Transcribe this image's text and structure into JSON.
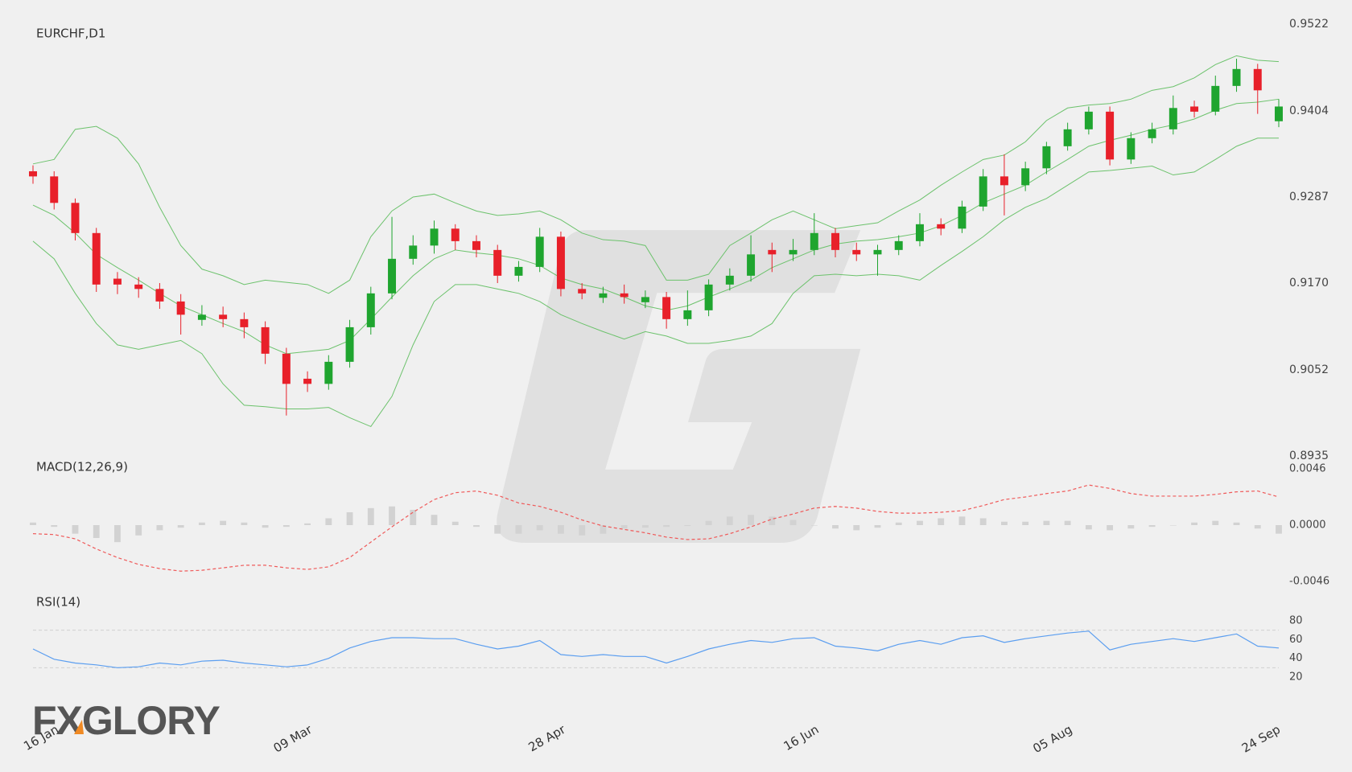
{
  "chart_data": [
    {
      "type": "candlestick",
      "title": "EURCHF,D1",
      "categories": [
        "16 Jan",
        null,
        null,
        null,
        null,
        null,
        null,
        null,
        null,
        null,
        null,
        null,
        "09 Mar",
        null,
        null,
        null,
        null,
        null,
        null,
        null,
        null,
        null,
        null,
        null,
        "28 Apr",
        null,
        null,
        null,
        null,
        null,
        null,
        null,
        null,
        null,
        null,
        null,
        "16 Jun",
        null,
        null,
        null,
        null,
        null,
        null,
        null,
        null,
        null,
        null,
        null,
        "05 Aug",
        null,
        null,
        null,
        null,
        null,
        null,
        null,
        null,
        null,
        null,
        "24 Sep"
      ],
      "open": [
        0.9322,
        0.9315,
        0.9279,
        0.9238,
        0.9176,
        0.9168,
        0.9162,
        0.9145,
        0.912,
        0.9127,
        0.9121,
        0.911,
        0.9074,
        0.904,
        0.9033,
        0.9063,
        0.911,
        0.9156,
        0.9203,
        0.9221,
        0.9244,
        0.9227,
        0.9215,
        0.918,
        0.9192,
        0.9233,
        0.9162,
        0.915,
        0.9156,
        0.9144,
        0.9151,
        0.9121,
        0.9133,
        0.9168,
        0.918,
        0.9215,
        0.9209,
        0.9215,
        0.9238,
        0.9215,
        0.9209,
        0.9215,
        0.9227,
        0.925,
        0.9244,
        0.9274,
        0.9315,
        0.9303,
        0.9326,
        0.9356,
        0.9379,
        0.9403,
        0.9338,
        0.9367,
        0.9379,
        0.941,
        0.9403,
        0.9438,
        0.9461,
        0.939
      ],
      "high": [
        0.933,
        0.9322,
        0.9285,
        0.9245,
        0.9185,
        0.9178,
        0.917,
        0.9155,
        0.914,
        0.9138,
        0.913,
        0.9118,
        0.9082,
        0.905,
        0.9072,
        0.912,
        0.9165,
        0.926,
        0.9235,
        0.9255,
        0.925,
        0.9235,
        0.9222,
        0.92,
        0.9245,
        0.924,
        0.917,
        0.9165,
        0.9168,
        0.916,
        0.9158,
        0.916,
        0.9175,
        0.919,
        0.9235,
        0.9225,
        0.923,
        0.9265,
        0.9245,
        0.9225,
        0.9222,
        0.9235,
        0.9265,
        0.9258,
        0.9282,
        0.9325,
        0.9345,
        0.9335,
        0.9362,
        0.9388,
        0.941,
        0.941,
        0.9375,
        0.9388,
        0.9425,
        0.9418,
        0.9452,
        0.9475,
        0.9468,
        0.942
      ],
      "low": [
        0.9305,
        0.927,
        0.9228,
        0.9158,
        0.9155,
        0.915,
        0.9135,
        0.91,
        0.9112,
        0.911,
        0.9095,
        0.906,
        0.899,
        0.9022,
        0.9025,
        0.9055,
        0.91,
        0.9148,
        0.9195,
        0.921,
        0.9215,
        0.9205,
        0.917,
        0.9172,
        0.9185,
        0.9152,
        0.9148,
        0.9143,
        0.9142,
        0.9136,
        0.9108,
        0.9112,
        0.9125,
        0.916,
        0.9172,
        0.9185,
        0.92,
        0.9208,
        0.9205,
        0.92,
        0.918,
        0.9208,
        0.922,
        0.9235,
        0.9238,
        0.9268,
        0.9262,
        0.9295,
        0.9318,
        0.935,
        0.9372,
        0.933,
        0.9332,
        0.936,
        0.9372,
        0.9395,
        0.9398,
        0.943,
        0.94,
        0.9382
      ],
      "close": [
        0.9315,
        0.9279,
        0.9238,
        0.9168,
        0.9168,
        0.9162,
        0.9145,
        0.9127,
        0.9127,
        0.9121,
        0.911,
        0.9074,
        0.9033,
        0.9033,
        0.9063,
        0.911,
        0.9156,
        0.9203,
        0.9221,
        0.9244,
        0.9227,
        0.9215,
        0.918,
        0.9192,
        0.9233,
        0.9162,
        0.9156,
        0.9156,
        0.9151,
        0.9151,
        0.9121,
        0.9133,
        0.9168,
        0.918,
        0.9209,
        0.9209,
        0.9215,
        0.9238,
        0.9215,
        0.9209,
        0.9215,
        0.9227,
        0.925,
        0.9244,
        0.9274,
        0.9315,
        0.9303,
        0.9326,
        0.9356,
        0.9379,
        0.9403,
        0.9338,
        0.9367,
        0.9379,
        0.9408,
        0.9403,
        0.9438,
        0.9461,
        0.9432,
        0.941
      ],
      "up_color": "#1fa52f",
      "down_color": "#e8202a",
      "bands": {
        "color": "#6cc26c",
        "upper": [
          0.9332,
          0.9338,
          0.9379,
          0.9383,
          0.9367,
          0.9332,
          0.9273,
          0.9221,
          0.9189,
          0.918,
          0.9168,
          0.9174,
          0.9171,
          0.9168,
          0.9156,
          0.9174,
          0.9233,
          0.9268,
          0.9287,
          0.9291,
          0.9279,
          0.9268,
          0.9262,
          0.9264,
          0.9268,
          0.9256,
          0.9238,
          0.9229,
          0.9227,
          0.9221,
          0.9174,
          0.9174,
          0.9182,
          0.9221,
          0.9238,
          0.9256,
          0.9268,
          0.9256,
          0.9244,
          0.9248,
          0.9252,
          0.9268,
          0.9283,
          0.9303,
          0.9321,
          0.9338,
          0.9344,
          0.9362,
          0.9391,
          0.9408,
          0.9412,
          0.9414,
          0.942,
          0.9432,
          0.9437,
          0.9449,
          0.9467,
          0.9479,
          0.9473,
          0.9471
        ],
        "middle": [
          0.9276,
          0.9262,
          0.9238,
          0.9209,
          0.9191,
          0.9174,
          0.9156,
          0.9139,
          0.9127,
          0.9115,
          0.9104,
          0.9086,
          0.9074,
          0.9077,
          0.908,
          0.9092,
          0.9121,
          0.9151,
          0.918,
          0.9203,
          0.9215,
          0.9211,
          0.9208,
          0.9203,
          0.9194,
          0.9177,
          0.9168,
          0.9162,
          0.9151,
          0.9139,
          0.9133,
          0.9139,
          0.9151,
          0.9162,
          0.9174,
          0.9191,
          0.9203,
          0.9215,
          0.9223,
          0.9227,
          0.9229,
          0.9233,
          0.9238,
          0.9248,
          0.9262,
          0.9279,
          0.9291,
          0.9303,
          0.9321,
          0.9338,
          0.9356,
          0.9364,
          0.9371,
          0.9379,
          0.9385,
          0.9393,
          0.9405,
          0.9414,
          0.9416,
          0.942
        ],
        "lower": [
          0.9227,
          0.9203,
          0.9156,
          0.9115,
          0.9086,
          0.908,
          0.9086,
          0.9092,
          0.9074,
          0.9033,
          0.9004,
          0.9002,
          0.8999,
          0.8999,
          0.9001,
          0.8987,
          0.8975,
          0.9016,
          0.9086,
          0.9145,
          0.9168,
          0.9168,
          0.9162,
          0.9156,
          0.9145,
          0.9127,
          0.9115,
          0.9104,
          0.9094,
          0.9104,
          0.9098,
          0.9088,
          0.9088,
          0.9092,
          0.9098,
          0.9115,
          0.9156,
          0.918,
          0.9182,
          0.918,
          0.9182,
          0.918,
          0.9174,
          0.9194,
          0.9213,
          0.9233,
          0.9256,
          0.9273,
          0.9285,
          0.9303,
          0.9321,
          0.9323,
          0.9326,
          0.9329,
          0.9317,
          0.9321,
          0.9338,
          0.9356,
          0.9367,
          0.9367
        ]
      },
      "ylim": [
        0.8935,
        0.9522
      ],
      "yticks": [
        0.9522,
        0.9404,
        0.9287,
        {
          "value": 0.917,
          "label": "0.9170"
        },
        0.9052,
        0.8935
      ]
    },
    {
      "type": "macd",
      "title": "MACD(12,26,9)",
      "histogram": {
        "color": "#d2d2d2",
        "values": [
          0.00021,
          -0.00014,
          -0.0007,
          -0.00105,
          -0.00139,
          -0.00084,
          -0.00042,
          -0.00021,
          0.00021,
          0.00035,
          0.00021,
          -0.00021,
          -0.00014,
          0.00014,
          0.00056,
          0.00105,
          0.00139,
          0.00153,
          0.00125,
          0.00084,
          0.00028,
          -0.00014,
          -0.0007,
          -0.0007,
          -0.00042,
          -0.0007,
          -0.00084,
          -0.0007,
          -0.00028,
          -0.00021,
          -0.00014,
          -7e-05,
          0.00035,
          0.0007,
          0.00084,
          0.0007,
          0.00042,
          0,
          -0.00028,
          -0.00042,
          -0.00021,
          0.00021,
          0.00035,
          0.00056,
          0.0007,
          0.00056,
          0.00028,
          0.00028,
          0.00035,
          0.00035,
          -0.00035,
          -0.00042,
          -0.00028,
          -0.00014,
          0,
          0.00021,
          0.00035,
          0.00021,
          -0.00028,
          -0.0007
        ]
      },
      "signal": {
        "color": "#ef5a5a",
        "values": [
          -0.0007,
          -0.00077,
          -0.00112,
          -0.00195,
          -0.00265,
          -0.00321,
          -0.00355,
          -0.00376,
          -0.00369,
          -0.00349,
          -0.00328,
          -0.00328,
          -0.00349,
          -0.00362,
          -0.00341,
          -0.00265,
          -0.00139,
          -0.00014,
          0.00105,
          0.00209,
          0.00265,
          0.00279,
          0.00244,
          0.00181,
          0.00153,
          0.00105,
          0.00042,
          -7e-05,
          -0.00035,
          -0.00063,
          -0.00098,
          -0.00118,
          -0.00112,
          -0.0007,
          -0.00014,
          0.00049,
          0.00091,
          0.00139,
          0.00153,
          0.00139,
          0.00112,
          0.00098,
          0.00098,
          0.00105,
          0.00118,
          0.0016,
          0.00209,
          0.0023,
          0.00258,
          0.00279,
          0.00328,
          0.003,
          0.00258,
          0.00237,
          0.00237,
          0.00237,
          0.00251,
          0.00272,
          0.00279,
          0.0023
        ]
      },
      "ylim": [
        -0.0046,
        0.0046
      ],
      "yticks": [
        0.0046,
        {
          "value": 0,
          "label": "0.0000"
        },
        -0.0046
      ]
    },
    {
      "type": "line",
      "title": "RSI(14)",
      "color": "#5b9ef0",
      "values": [
        50,
        39,
        35,
        33,
        30,
        31,
        35,
        33,
        37,
        38,
        35,
        33,
        31,
        33,
        40,
        51,
        58,
        62,
        62,
        61,
        61,
        55,
        50,
        53,
        59,
        44,
        42,
        44,
        42,
        42,
        35,
        42,
        50,
        55,
        59,
        57,
        61,
        62,
        53,
        51,
        48,
        55,
        59,
        55,
        62,
        64,
        57,
        61,
        64,
        67,
        69,
        49,
        55,
        58,
        61,
        58,
        62,
        66,
        53,
        51
      ],
      "levels": [
        30,
        70
      ],
      "ylim": [
        20,
        80
      ],
      "yticks": [
        80,
        60,
        40,
        20
      ]
    }
  ],
  "logo": "FXGLORY"
}
